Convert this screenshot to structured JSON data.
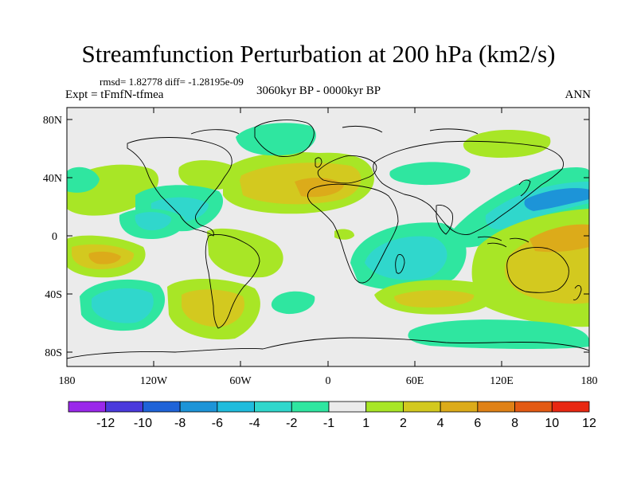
{
  "header": {
    "title": "Streamfunction Perturbation at 200 hPa (km2/s)",
    "stats": "rmsd= 1.82778 diff= -1.28195e-09",
    "experiment": "Expt = tFmfN-tfmea",
    "period": "3060kyr BP - 0000kyr BP",
    "season": "ANN"
  },
  "axes": {
    "lat_labels": [
      "80N",
      "40N",
      "0",
      "40S",
      "80S"
    ],
    "lon_labels": [
      "180",
      "120W",
      "60W",
      "0",
      "60E",
      "120E",
      "180"
    ]
  },
  "colorbar": {
    "labels": [
      "-12",
      "-10",
      "-8",
      "-6",
      "-4",
      "-2",
      "-1",
      "1",
      "2",
      "4",
      "6",
      "8",
      "10",
      "12"
    ],
    "colors": [
      "#9a28ea",
      "#4a3adc",
      "#1f63d8",
      "#1d94d8",
      "#20bcdd",
      "#30d7cc",
      "#2fe6a0",
      "#ebebeb",
      "#a8e626",
      "#d3c91f",
      "#dcab1a",
      "#df8116",
      "#e35a13",
      "#e82812"
    ]
  },
  "palette": {
    "pos1": "#a8e626",
    "pos2": "#d3c91f",
    "pos3": "#dcab1a",
    "pos4": "#df8116",
    "neg1": "#2fe6a0",
    "neg2": "#30d7cc",
    "neg3": "#20bcdd",
    "neg4": "#1d94d8",
    "background": "#ebebeb",
    "coast": "#000000"
  }
}
